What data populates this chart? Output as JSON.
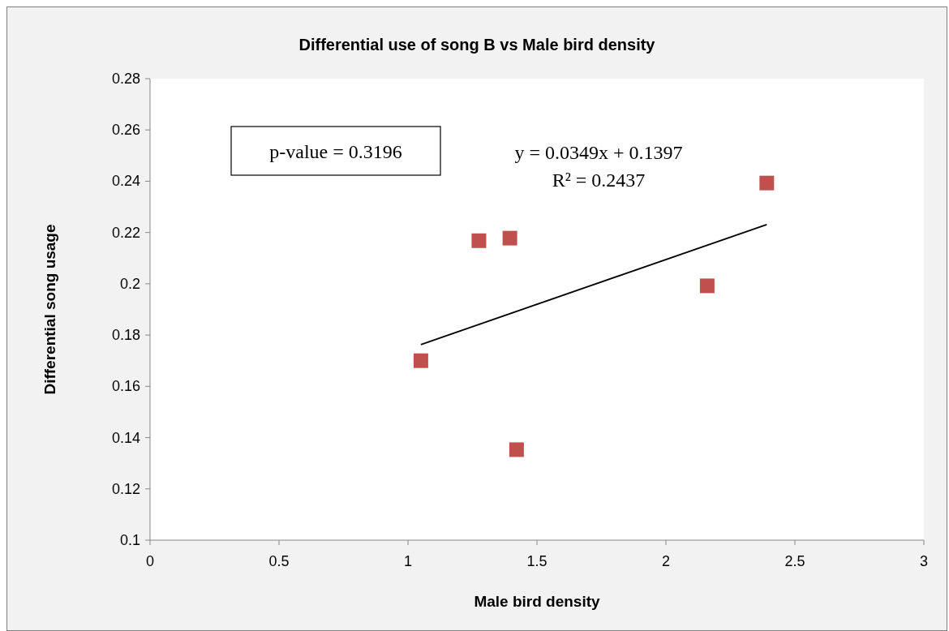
{
  "chart_data": {
    "type": "scatter",
    "title": "Differential use of song B vs Male bird density",
    "xlabel": "Male bird density",
    "ylabel": "Differential song usage",
    "xlim": [
      0,
      3
    ],
    "xticks": [
      0,
      0.5,
      1,
      1.5,
      2,
      2.5,
      3
    ],
    "ylim": [
      0.1,
      0.28
    ],
    "yticks": [
      0.1,
      0.12,
      0.14,
      0.16,
      0.18,
      0.2,
      0.22,
      0.24,
      0.26,
      0.28
    ],
    "grid": false,
    "marker": "square",
    "series": [
      {
        "color": "#c0504d",
        "x": [
          1.05,
          1.275,
          1.395,
          1.421,
          2.16,
          2.391
        ],
        "values": [
          0.17,
          0.2168,
          0.2178,
          0.1353,
          0.1992,
          0.2393
        ]
      },
      {
        "type": "line",
        "color": "#000000",
        "marker": "none",
        "x": [
          1.05,
          2.391
        ],
        "values": [
          0.1763,
          0.2231
        ]
      }
    ],
    "annotations": [
      "p-value = 0.3196",
      "y = 0.0349x + 0.1397",
      "R² = 0.2437"
    ]
  }
}
